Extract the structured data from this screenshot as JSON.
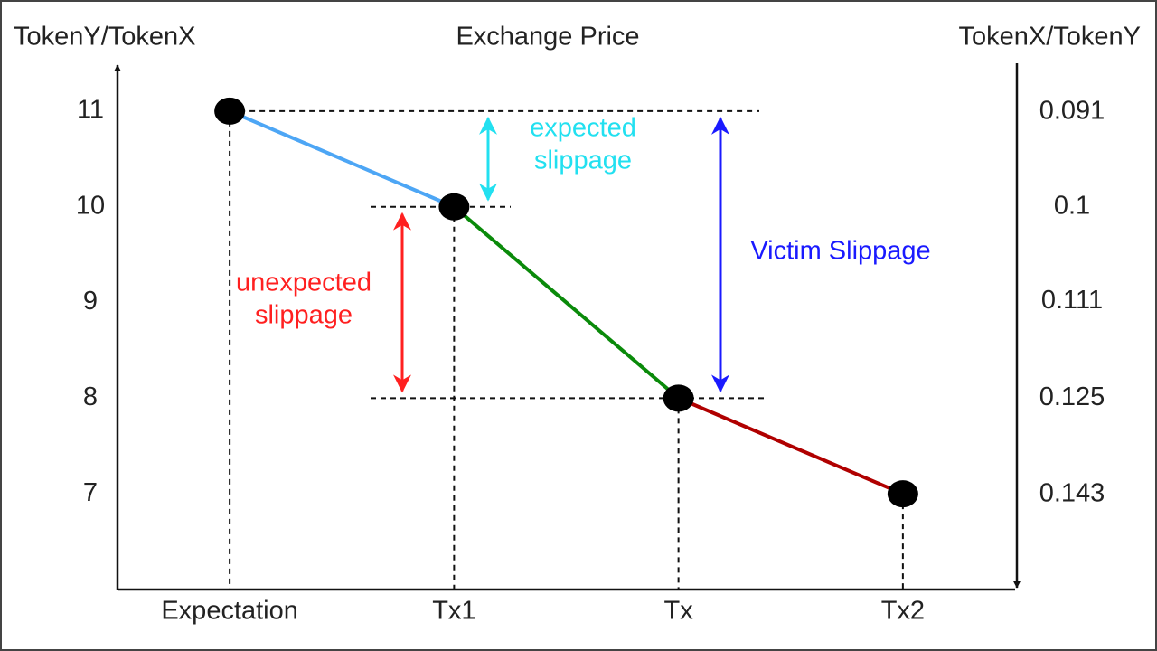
{
  "chart_data": {
    "type": "line",
    "title": "Exchange Price",
    "y_label": "TokenY/TokenX",
    "y2_label": "TokenX/TokenY",
    "categories": [
      "Expectation",
      "Tx1",
      "Tx",
      "Tx2"
    ],
    "values": [
      11,
      10,
      8,
      7
    ],
    "segment_colors": [
      "#4da6f5",
      "#0a8a0a",
      "#b00000"
    ],
    "point_color": "#000000",
    "ylim": [
      6,
      11.5
    ],
    "yticks": [
      7,
      8,
      9,
      10,
      11
    ],
    "y2_scale": "reciprocal",
    "y2ticks": [
      0.091,
      0.1,
      0.111,
      0.125,
      0.143
    ],
    "annotations": [
      {
        "text": [
          "expected",
          "slippage"
        ],
        "color": "#22e0f0"
      },
      {
        "text": [
          "unexpected",
          "slippage"
        ],
        "color": "#ff2020"
      },
      {
        "text": [
          "Victim Slippage"
        ],
        "color": "#1a1aff"
      }
    ]
  }
}
